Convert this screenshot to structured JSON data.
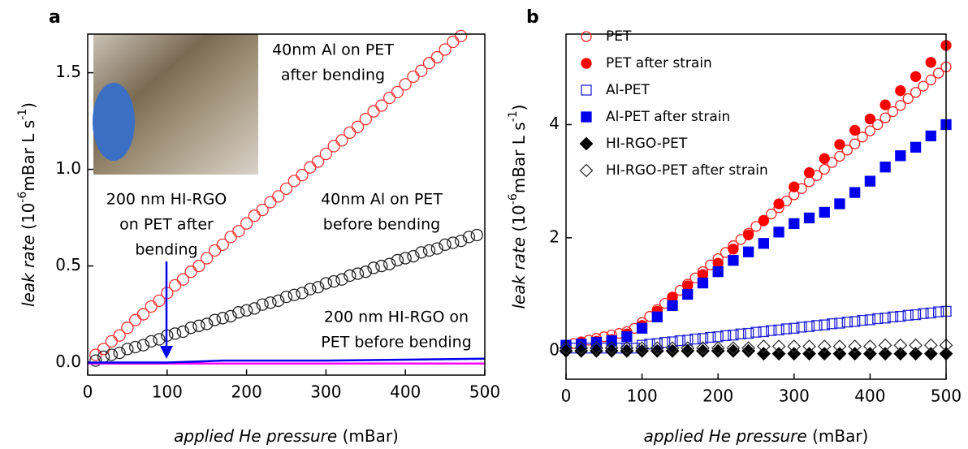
{
  "chart_data": [
    {
      "type": "scatter",
      "panel_label": "a",
      "xlabel": [
        "applied He pressure",
        " (mBar)"
      ],
      "ylabel": [
        "leak rate",
        " (10",
        "-6",
        "mBar L s",
        "-1",
        ")"
      ],
      "xlim": [
        0,
        500
      ],
      "ylim": [
        -0.065,
        1.7
      ],
      "xticks": [
        0,
        100,
        200,
        300,
        400,
        500
      ],
      "yticks": [
        {
          "value": 0,
          "label": "0.0"
        },
        0.5,
        {
          "value": 1,
          "label": "1.0"
        },
        1.5
      ],
      "series": [
        {
          "color": "#ff3333",
          "style": "open-circle",
          "x": [
            10,
            20,
            30,
            40,
            50,
            60,
            70,
            80,
            90,
            100,
            110,
            120,
            130,
            140,
            150,
            160,
            170,
            180,
            190,
            200,
            210,
            220,
            230,
            240,
            250,
            260,
            270,
            280,
            290,
            300,
            310,
            320,
            330,
            340,
            350,
            360,
            370,
            380,
            390,
            400,
            410,
            420,
            430,
            440,
            450,
            460,
            470
          ],
          "values": [
            0.04,
            0.07,
            0.11,
            0.14,
            0.18,
            0.22,
            0.25,
            0.29,
            0.32,
            0.36,
            0.4,
            0.43,
            0.47,
            0.5,
            0.54,
            0.58,
            0.61,
            0.65,
            0.68,
            0.72,
            0.76,
            0.79,
            0.83,
            0.86,
            0.9,
            0.94,
            0.97,
            1.01,
            1.04,
            1.08,
            1.12,
            1.15,
            1.19,
            1.22,
            1.26,
            1.3,
            1.33,
            1.37,
            1.4,
            1.44,
            1.48,
            1.51,
            1.55,
            1.58,
            1.62,
            1.66,
            1.69
          ]
        },
        {
          "color": "#222222",
          "style": "open-circle",
          "x": [
            10,
            20,
            30,
            40,
            50,
            60,
            70,
            80,
            90,
            100,
            110,
            120,
            130,
            140,
            150,
            160,
            170,
            180,
            190,
            200,
            210,
            220,
            230,
            240,
            250,
            260,
            270,
            280,
            290,
            300,
            310,
            320,
            330,
            340,
            350,
            360,
            370,
            380,
            390,
            400,
            410,
            420,
            430,
            440,
            450,
            460,
            470,
            480,
            490
          ],
          "values": [
            0.01,
            0.03,
            0.04,
            0.05,
            0.07,
            0.08,
            0.09,
            0.11,
            0.12,
            0.14,
            0.15,
            0.16,
            0.18,
            0.19,
            0.2,
            0.22,
            0.23,
            0.24,
            0.26,
            0.27,
            0.28,
            0.3,
            0.31,
            0.32,
            0.34,
            0.35,
            0.36,
            0.38,
            0.39,
            0.41,
            0.42,
            0.43,
            0.45,
            0.46,
            0.47,
            0.49,
            0.5,
            0.51,
            0.53,
            0.54,
            0.55,
            0.57,
            0.58,
            0.59,
            0.61,
            0.62,
            0.63,
            0.65,
            0.66
          ]
        },
        {
          "color": "#ff00ff",
          "style": "line",
          "x": [
            0,
            500
          ],
          "values": [
            -0.005,
            -0.005
          ]
        },
        {
          "color": "#0000ee",
          "style": "line",
          "x": [
            0,
            100,
            170,
            300,
            400,
            500
          ],
          "values": [
            0,
            0,
            0.01,
            0.01,
            0.015,
            0.02
          ]
        }
      ],
      "annotations": [
        {
          "color": "#ff0000",
          "lines": [
            "40nm Al on PET",
            "after bending"
          ]
        },
        {
          "color": "#000000",
          "lines": [
            "40nm Al on PET",
            "before bending"
          ]
        },
        {
          "color": "#0000ee",
          "lines": [
            "200 nm HI-RGO",
            "on PET after",
            "bending"
          ]
        },
        {
          "color": "#ff00ff",
          "lines": [
            "200 nm HI-RGO on",
            "PET before bending"
          ]
        }
      ]
    },
    {
      "type": "scatter",
      "panel_label": "b",
      "xlabel": [
        "applied He pressure",
        " (mBar)"
      ],
      "ylabel": [
        "leak rate",
        " (10",
        "-6",
        "mBar L s",
        "-1",
        ")"
      ],
      "xlim": [
        0,
        500
      ],
      "ylim": [
        -0.5,
        5.6
      ],
      "xticks": [
        0,
        100,
        200,
        300,
        400,
        500
      ],
      "yticks": [
        0,
        2,
        4
      ],
      "series": [
        {
          "name": "PET",
          "color": "#ff2222",
          "style": "open-circle",
          "x": [
            10,
            20,
            30,
            40,
            50,
            60,
            70,
            80,
            90,
            100,
            110,
            120,
            130,
            140,
            150,
            160,
            170,
            180,
            190,
            200,
            210,
            220,
            230,
            240,
            250,
            260,
            270,
            280,
            290,
            300,
            310,
            320,
            330,
            340,
            350,
            360,
            370,
            380,
            390,
            400,
            410,
            420,
            430,
            440,
            450,
            460,
            470,
            480,
            490,
            500
          ],
          "values": [
            0.13,
            0.16,
            0.19,
            0.22,
            0.25,
            0.28,
            0.31,
            0.34,
            0.4,
            0.5,
            0.61,
            0.73,
            0.84,
            0.95,
            1.07,
            1.18,
            1.29,
            1.4,
            1.52,
            1.63,
            1.74,
            1.86,
            1.97,
            2.08,
            2.2,
            2.31,
            2.42,
            2.53,
            2.65,
            2.76,
            2.87,
            2.99,
            3.1,
            3.21,
            3.33,
            3.44,
            3.55,
            3.66,
            3.78,
            3.89,
            4.0,
            4.12,
            4.23,
            4.34,
            4.46,
            4.57,
            4.68,
            4.79,
            4.91,
            5.02
          ]
        },
        {
          "name": "PET after strain",
          "color": "#ff0000",
          "style": "filled-circle",
          "x": [
            20,
            40,
            60,
            80,
            100,
            120,
            140,
            160,
            180,
            200,
            220,
            240,
            260,
            280,
            300,
            320,
            340,
            360,
            380,
            400,
            420,
            440,
            460,
            480,
            500
          ],
          "values": [
            0.15,
            0.17,
            0.2,
            0.3,
            0.45,
            0.7,
            0.95,
            1.15,
            1.35,
            1.55,
            1.8,
            2.05,
            2.3,
            2.6,
            2.9,
            3.15,
            3.4,
            3.65,
            3.9,
            4.1,
            4.35,
            4.6,
            4.85,
            5.1,
            5.4
          ]
        },
        {
          "name": "Al-PET",
          "color": "#2222dd",
          "style": "open-square",
          "x": [
            0,
            10,
            20,
            30,
            40,
            50,
            60,
            70,
            80,
            90,
            100,
            110,
            120,
            130,
            140,
            150,
            160,
            170,
            180,
            190,
            200,
            210,
            220,
            230,
            240,
            250,
            260,
            270,
            280,
            290,
            300,
            310,
            320,
            330,
            340,
            350,
            360,
            370,
            380,
            390,
            400,
            410,
            420,
            430,
            440,
            450,
            460,
            470,
            480,
            490,
            500
          ],
          "values": [
            0.05,
            0.05,
            0.05,
            0.05,
            0.05,
            0.05,
            0.05,
            0.05,
            0.05,
            0.05,
            0.1,
            0.12,
            0.13,
            0.15,
            0.16,
            0.18,
            0.19,
            0.21,
            0.22,
            0.24,
            0.25,
            0.27,
            0.28,
            0.3,
            0.31,
            0.33,
            0.34,
            0.36,
            0.37,
            0.39,
            0.4,
            0.42,
            0.43,
            0.45,
            0.46,
            0.48,
            0.49,
            0.51,
            0.52,
            0.54,
            0.55,
            0.57,
            0.58,
            0.6,
            0.61,
            0.63,
            0.64,
            0.66,
            0.67,
            0.69,
            0.7
          ]
        },
        {
          "name": "Al-PET after strain",
          "color": "#0000ee",
          "style": "filled-square",
          "x": [
            0,
            20,
            40,
            60,
            80,
            100,
            120,
            140,
            160,
            180,
            200,
            220,
            240,
            260,
            280,
            300,
            320,
            340,
            360,
            380,
            400,
            420,
            440,
            460,
            480,
            500
          ],
          "values": [
            0.1,
            0.12,
            0.15,
            0.18,
            0.25,
            0.4,
            0.6,
            0.8,
            1.0,
            1.2,
            1.4,
            1.6,
            1.75,
            1.9,
            2.1,
            2.25,
            2.35,
            2.45,
            2.6,
            2.8,
            3.0,
            3.25,
            3.45,
            3.6,
            3.8,
            4.0
          ]
        },
        {
          "name": "HI-RGO-PET",
          "color": "#000000",
          "style": "filled-diamond",
          "x": [
            0,
            20,
            40,
            60,
            80,
            100,
            120,
            140,
            160,
            180,
            200,
            220,
            240,
            260,
            280,
            300,
            320,
            340,
            360,
            380,
            400,
            420,
            440,
            460,
            480,
            500
          ],
          "values": [
            0,
            0,
            0,
            0,
            0,
            0,
            0,
            0,
            0,
            0,
            0,
            0,
            0,
            -0.05,
            -0.05,
            -0.05,
            -0.05,
            -0.05,
            -0.05,
            -0.05,
            -0.05,
            -0.05,
            -0.05,
            -0.05,
            -0.05,
            -0.05
          ]
        },
        {
          "name": "HI-RGO-PET after strain",
          "color": "#333333",
          "style": "open-diamond",
          "x": [
            0,
            20,
            40,
            60,
            80,
            100,
            120,
            140,
            160,
            180,
            200,
            220,
            240,
            260,
            280,
            300,
            320,
            340,
            360,
            380,
            400,
            420,
            440,
            460,
            480,
            500
          ],
          "values": [
            0.05,
            0.05,
            0.05,
            0.05,
            0.05,
            0.05,
            0.05,
            0.05,
            0.05,
            0.05,
            0.05,
            0.05,
            0.05,
            0.08,
            0.08,
            0.08,
            0.08,
            0.08,
            0.08,
            0.08,
            0.08,
            0.1,
            0.1,
            0.1,
            0.1,
            0.1
          ]
        }
      ]
    }
  ]
}
